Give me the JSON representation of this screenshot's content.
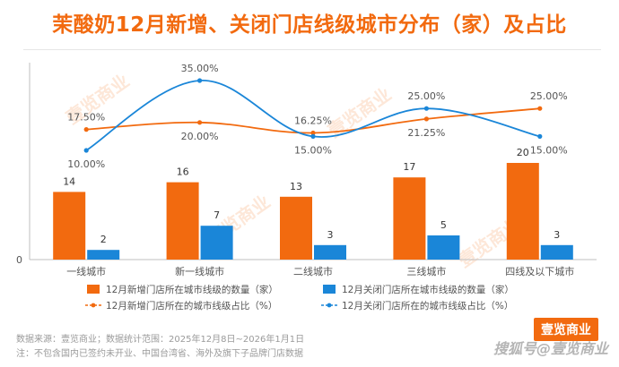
{
  "title": "茉酸奶12月新增、关闭门店线级城市分布（家）及占比",
  "footer": {
    "source": "数据来源：壹览商业；数据统计范围：2025年12月8日~2026年1月1日",
    "note": "注：不包含国内已签约未开业、中国台湾省、海外及旗下子品牌门店数据",
    "brand": "壹览商业",
    "watermark_bottom": "搜狐号@壹览商业"
  },
  "watermark": "壹览商业",
  "colors": {
    "orange": "#F26A0F",
    "blue": "#1A86D8",
    "axis": "#bfbfbf",
    "text": "#555555"
  },
  "chart_data": {
    "type": "bar",
    "categories": [
      "一线城市",
      "新一线城市",
      "二线城市",
      "三线城市",
      "四线及以下城市"
    ],
    "series": [
      {
        "name": "12月新增门店所在城市线级的数量（家）",
        "type": "bar",
        "values": [
          14,
          16,
          13,
          17,
          20
        ],
        "color": "#F26A0F"
      },
      {
        "name": "12月关闭门店所在城市线级的数量（家）",
        "type": "bar",
        "values": [
          2,
          7,
          3,
          5,
          3
        ],
        "color": "#1A86D8"
      },
      {
        "name": "12月新增门店所在的城市线级占比（%）",
        "type": "line",
        "values": [
          17.5,
          20.0,
          16.25,
          21.25,
          25.0
        ],
        "labels": [
          "17.50%",
          "20.00%",
          "16.25%",
          "21.25%",
          "25.00%"
        ],
        "color": "#F26A0F"
      },
      {
        "name": "12月关闭门店所在的城市线级占比（%）",
        "type": "line",
        "values": [
          10.0,
          35.0,
          15.0,
          25.0,
          15.0
        ],
        "labels": [
          "10.00%",
          "35.00%",
          "15.00%",
          "25.00%",
          "15.00%"
        ],
        "color": "#1A86D8"
      }
    ],
    "bar_axis_label": "0",
    "legend_position": "bottom",
    "grid": false
  }
}
